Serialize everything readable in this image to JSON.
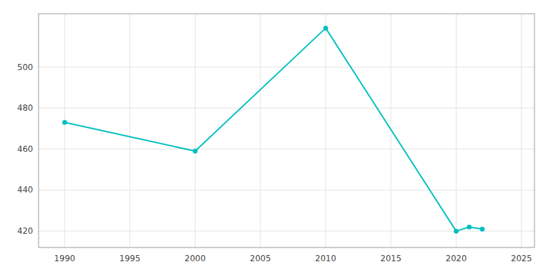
{
  "chart_data": {
    "type": "line",
    "x": [
      1990,
      2000,
      2010,
      2020,
      2021,
      2022
    ],
    "values": [
      473,
      459,
      519,
      420,
      422,
      421
    ],
    "color": "#00BFBF",
    "marker": "circle",
    "xlim": [
      1988,
      2026
    ],
    "ylim": [
      412,
      526
    ],
    "xticks": [
      1990,
      1995,
      2000,
      2005,
      2010,
      2015,
      2020,
      2025
    ],
    "yticks": [
      420,
      440,
      460,
      480,
      500
    ],
    "grid": true
  }
}
